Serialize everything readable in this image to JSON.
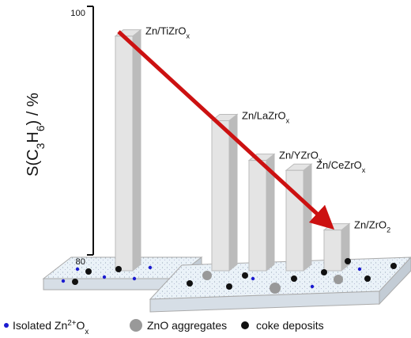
{
  "chart_data": {
    "type": "bar3d",
    "y_label": "S(C3H6) / %",
    "categories": [
      "Zn/TiZrOx",
      "Zn/LaZrOx",
      "Zn/YZrOx",
      "Zn/CeZrOx",
      "Zn/ZrO2"
    ],
    "values": [
      97.6,
      90.8,
      87.6,
      86.8,
      82.0
    ],
    "color": "#e4e4e4",
    "ylim": [
      80,
      100
    ],
    "yticks": [
      80,
      100
    ],
    "legend": [
      "Isolated Zn2+Ox",
      "ZnO aggregates",
      "coke deposits"
    ]
  }
}
